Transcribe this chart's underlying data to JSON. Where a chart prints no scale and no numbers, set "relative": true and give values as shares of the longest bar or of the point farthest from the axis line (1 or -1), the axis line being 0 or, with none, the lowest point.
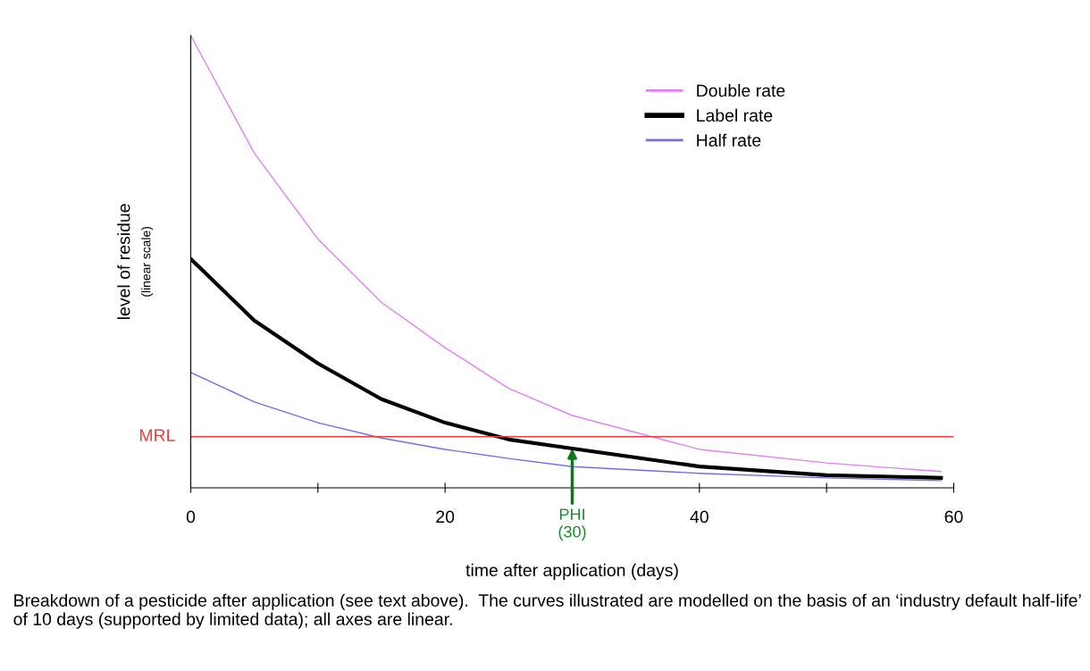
{
  "chart_data": {
    "type": "line",
    "relative": true,
    "xlabel": "time after application (days)",
    "ylabel": "level of residue\n(linear scale)",
    "xlim": [
      0,
      60
    ],
    "xticks": [
      0,
      {
        "value": 10,
        "label": null
      },
      20,
      {
        "value": 30,
        "label": null
      },
      40,
      {
        "value": 50,
        "label": null
      },
      60
    ],
    "x": [
      0,
      5,
      10,
      15,
      20,
      25,
      30,
      40,
      50,
      59
    ],
    "series": [
      {
        "name": "Double rate",
        "color": "#e080f0",
        "values": [
          1.0,
          0.74,
          0.55,
          0.41,
          0.31,
          0.22,
          0.16,
          0.085,
          0.055,
          0.036
        ]
      },
      {
        "name": "Label rate",
        "color": "#000000",
        "values": [
          0.506,
          0.37,
          0.275,
          0.196,
          0.144,
          0.107,
          0.087,
          0.047,
          0.028,
          0.022
        ]
      },
      {
        "name": "Half rate",
        "color": "#7070e0",
        "values": [
          0.255,
          0.19,
          0.144,
          0.11,
          0.085,
          0.065,
          0.047,
          0.032,
          0.022,
          0.016
        ]
      }
    ],
    "ref_lines": [
      {
        "axis": "y",
        "value": 0.113,
        "label": "MRL",
        "color": "#e84040"
      }
    ],
    "annotations": [
      {
        "text": "PHI\n(30)",
        "x": 30,
        "y": 0.087
      },
      "Breakdown of a pesticide after application (see text above).  The curves illustrated are modelled on the basis of an ‘industry default half-life’ of 10 days (supported by limited data); all axes are linear."
    ],
    "legend": "right",
    "grid": false
  }
}
